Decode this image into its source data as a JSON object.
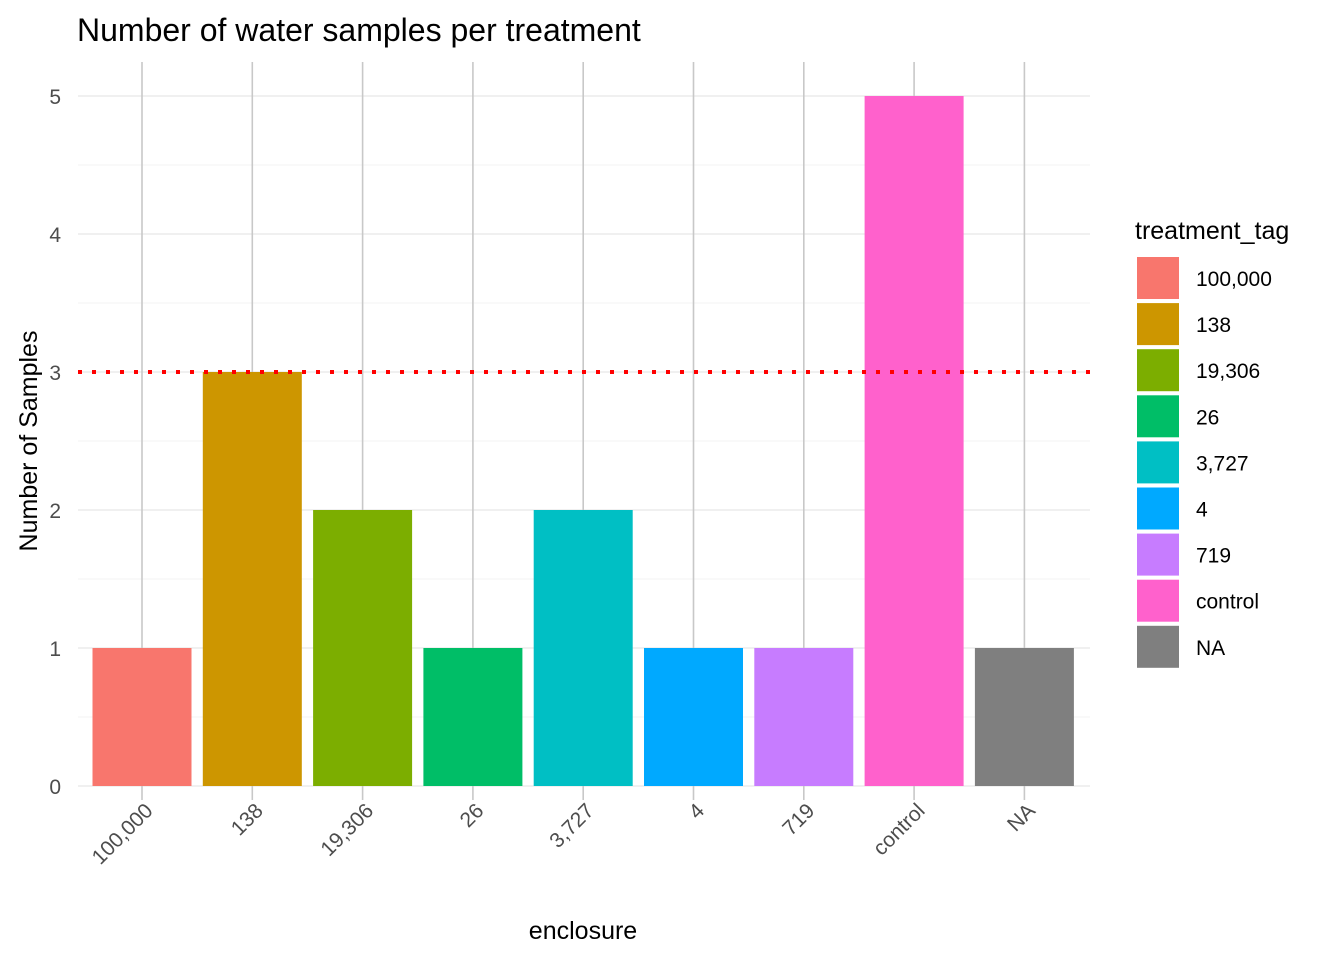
{
  "chart_data": {
    "type": "bar",
    "title": "Number of water samples per treatment",
    "xlabel": "enclosure",
    "ylabel": "Number of Samples",
    "categories": [
      "100,000",
      "138",
      "19,306",
      "26",
      "3,727",
      "4",
      "719",
      "control",
      "NA"
    ],
    "values": [
      1,
      3,
      2,
      1,
      2,
      1,
      1,
      5,
      1
    ],
    "colors": [
      "#F8766D",
      "#CD9600",
      "#7CAE00",
      "#00BE67",
      "#00BFC4",
      "#00A9FF",
      "#C77CFF",
      "#FF61CC",
      "#7F7F7F"
    ],
    "ylim": [
      0,
      5.25
    ],
    "yticks": [
      "0",
      "1",
      "2",
      "3",
      "4",
      "5"
    ],
    "grid": true,
    "reference_line": {
      "y": 3,
      "color": "#FF0000",
      "style": "dotted"
    },
    "legend": {
      "title": "treatment_tag",
      "position": "right",
      "entries": [
        "100,000",
        "138",
        "19,306",
        "26",
        "3,727",
        "4",
        "719",
        "control",
        "NA"
      ]
    }
  }
}
